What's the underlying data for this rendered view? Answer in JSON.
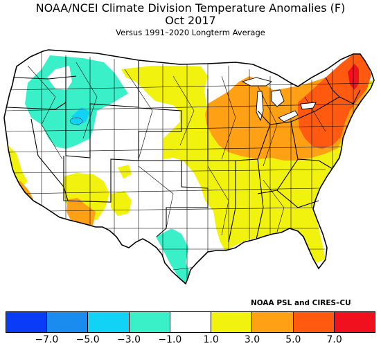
{
  "title": "NOAA/NCEI Climate Division Temperature Anomalies (F)",
  "subtitle": "Oct 2017",
  "baseline": "Versus 1991–2020 Longterm Average",
  "credit": "NOAA PSL and CIRES–CU",
  "legend": {
    "bins": [
      {
        "color": "#0a3cf5",
        "range": [
          -9.0,
          -7.0
        ]
      },
      {
        "color": "#1a8cf0",
        "range": [
          -7.0,
          -5.0
        ]
      },
      {
        "color": "#12d2f5",
        "range": [
          -5.0,
          -3.0
        ]
      },
      {
        "color": "#3af0c8",
        "range": [
          -3.0,
          -1.0
        ]
      },
      {
        "color": "#ffffff",
        "range": [
          -1.0,
          1.0
        ]
      },
      {
        "color": "#f2f20f",
        "range": [
          1.0,
          3.0
        ]
      },
      {
        "color": "#ffa015",
        "range": [
          3.0,
          5.0
        ]
      },
      {
        "color": "#ff5a10",
        "range": [
          5.0,
          7.0
        ]
      },
      {
        "color": "#f0101e",
        "range": [
          7.0,
          9.0
        ]
      }
    ],
    "tick_labels": [
      "−7.0",
      "−5.0",
      "−3.0",
      "−1.0",
      "1.0",
      "3.0",
      "5.0",
      "7.0"
    ]
  },
  "map": {
    "region": "Contiguous United States climate divisions",
    "anomaly_regions": [
      {
        "area": "New England",
        "bin": "5.0 to 7.0"
      },
      {
        "area": "Northern New Hampshire / Maine",
        "bin": "above 7.0"
      },
      {
        "area": "New York, Pennsylvania, Ohio Valley",
        "bin": "3.0 to 5.0"
      },
      {
        "area": "Upper Midwest / Great Lakes",
        "bin": "3.0 to 5.0"
      },
      {
        "area": "Mid-Atlantic and Southeast",
        "bin": "1.0 to 3.0"
      },
      {
        "area": "Central Plains and Midwest",
        "bin": "1.0 to 3.0"
      },
      {
        "area": "Southern Arizona",
        "bin": "3.0 to 5.0"
      },
      {
        "area": "Southern California",
        "bin": "3.0 to 5.0"
      },
      {
        "area": "Idaho, Montana, Wyoming, Utah",
        "bin": "-3.0 to -1.0"
      },
      {
        "area": "Western Wyoming",
        "bin": "-5.0 to -3.0"
      },
      {
        "area": "South Texas",
        "bin": "-3.0 to -1.0"
      },
      {
        "area": "Pacific Northwest, Great Basin, Southern Plains",
        "bin": "-1.0 to 1.0"
      }
    ]
  }
}
